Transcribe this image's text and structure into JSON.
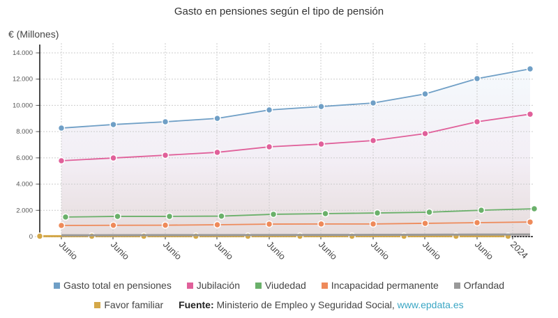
{
  "chart_data": {
    "type": "line",
    "title": "Gasto en pensiones según el tipo de pensión",
    "ylabel": "€ (Millones)",
    "ylim": [
      0,
      14000
    ],
    "yticks": [
      "0",
      "2.000",
      "4.000",
      "6.000",
      "8.000",
      "10.000",
      "12.000",
      "14.000"
    ],
    "xticks": [
      "Junio",
      "Junio",
      "Junio",
      "Junio",
      "Junio",
      "Junio",
      "Junio",
      "Junio",
      "Junio",
      "2024"
    ],
    "grid": true,
    "legend": "bottom",
    "series": [
      {
        "name": "Gasto total en pensiones",
        "color": "#6f9fc6",
        "values": [
          8270,
          8540,
          8750,
          9010,
          9650,
          9910,
          10180,
          10870,
          12040,
          12780
        ]
      },
      {
        "name": "Jubilación",
        "color": "#e0609a",
        "values": [
          5780,
          5990,
          6200,
          6420,
          6840,
          7050,
          7320,
          7850,
          8750,
          9330
        ]
      },
      {
        "name": "Viudedad",
        "color": "#6ab06a",
        "values": [
          1490,
          1540,
          1540,
          1560,
          1700,
          1750,
          1800,
          1860,
          2010,
          2120
        ]
      },
      {
        "name": "Incapacidad permanente",
        "color": "#ee8a5a",
        "values": [
          850,
          860,
          870,
          900,
          950,
          960,
          960,
          1010,
          1060,
          1110
        ]
      },
      {
        "name": "Orfandad",
        "color": "#999999",
        "values": [
          100,
          105,
          110,
          115,
          120,
          125,
          130,
          140,
          150,
          160
        ]
      },
      {
        "name": "Favor familiar",
        "color": "#d4a848",
        "values": [
          30,
          30,
          30,
          30,
          30,
          30,
          30,
          30,
          30,
          30
        ]
      }
    ]
  },
  "source": {
    "label": "Fuente:",
    "text": "Ministerio de Empleo y Seguridad Social,",
    "link": "www.epdata.es"
  }
}
